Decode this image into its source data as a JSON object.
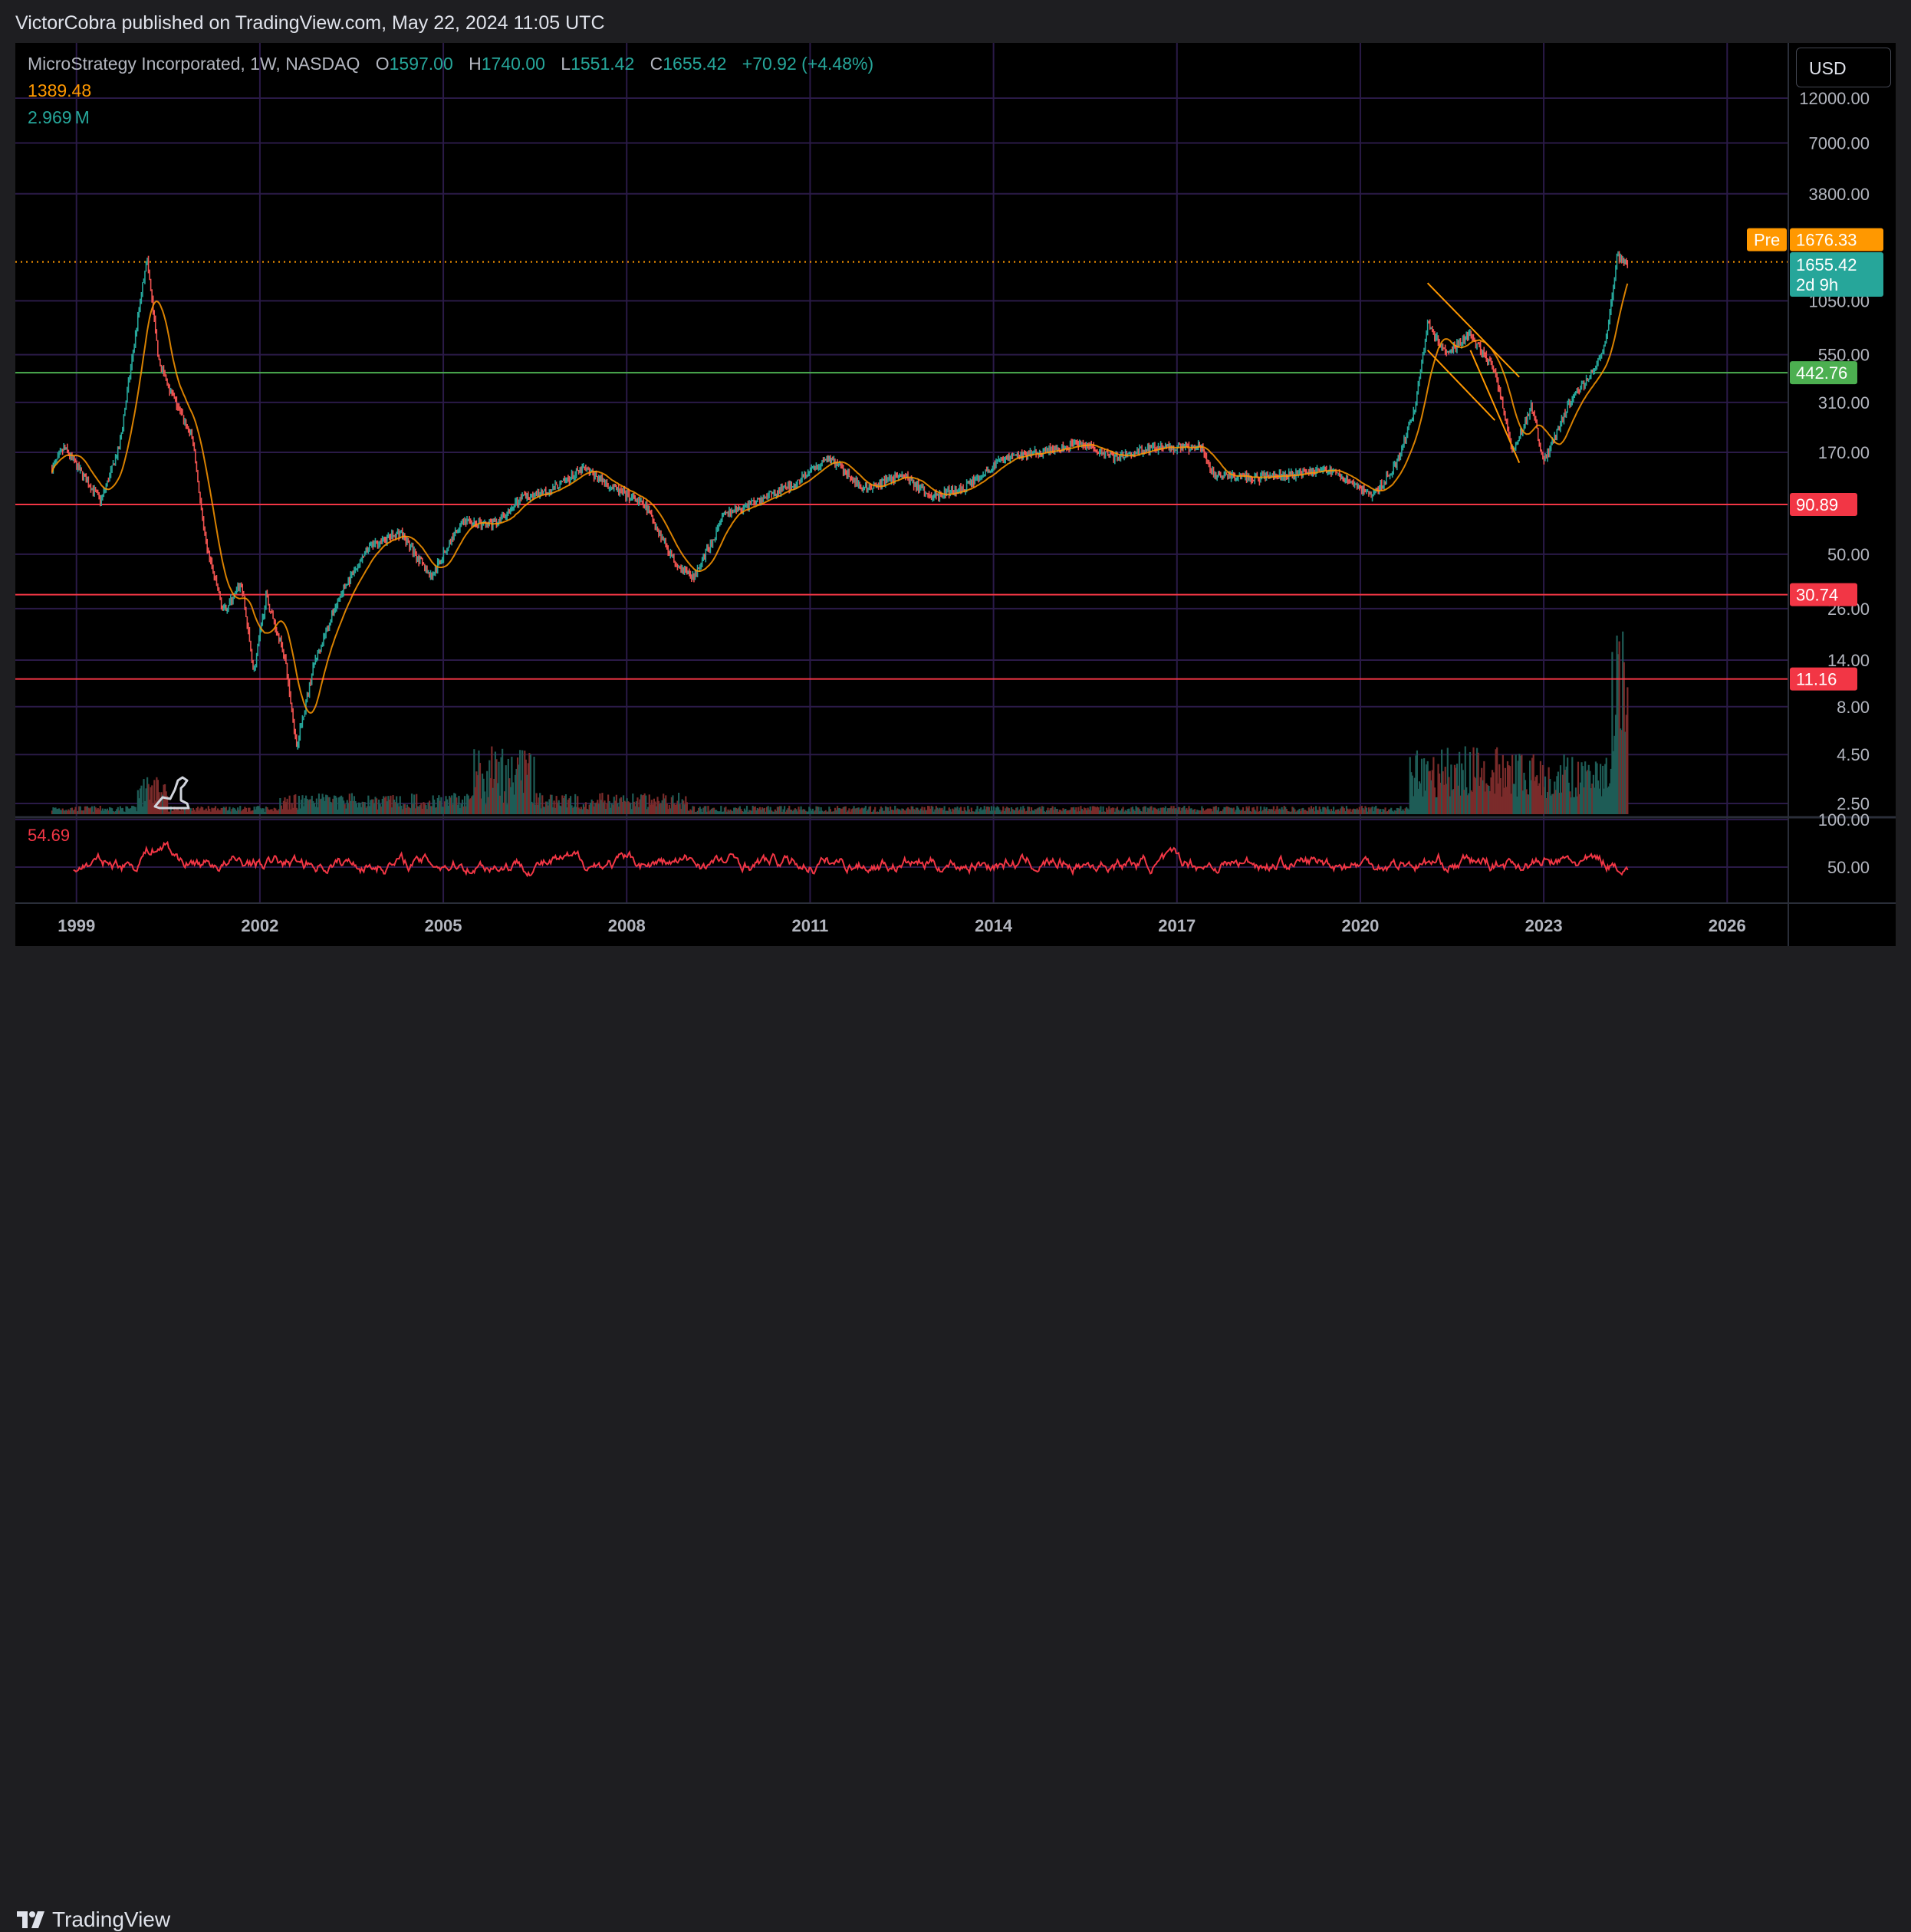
{
  "header": {
    "publisher_text": "VictorCobra published on TradingView.com, May 22, 2024 11:05 UTC"
  },
  "legend": {
    "symbol": "MicroStrategy Incorporated, 1W, NASDAQ",
    "o_label": "O",
    "o_value": "1597.00",
    "h_label": "H",
    "h_value": "1740.00",
    "l_label": "L",
    "l_value": "1551.42",
    "c_label": "C",
    "c_value": "1655.42",
    "change": "+70.92 (+4.48%)",
    "ma_value": "1389.48",
    "volume_value": "2.969",
    "volume_unit": "M"
  },
  "currency_button": "USD",
  "price_axis": {
    "ticks": [
      "12000.00",
      "7000.00",
      "3800.00",
      "1050.00",
      "550.00",
      "310.00",
      "170.00",
      "50.00",
      "26.00",
      "14.00",
      "8.00",
      "4.50",
      "2.50"
    ],
    "pre_label": "Pre",
    "pre_price": "1676.33",
    "last_price": "1655.42",
    "countdown": "2d 9h",
    "levels": [
      "442.76",
      "90.89",
      "30.74",
      "11.16"
    ]
  },
  "rsi": {
    "value": "54.69",
    "ticks": [
      "100.00",
      "50.00"
    ]
  },
  "time_axis": {
    "ticks": [
      "1999",
      "2002",
      "2005",
      "2008",
      "2011",
      "2014",
      "2017",
      "2020",
      "2023",
      "2026"
    ]
  },
  "colors": {
    "up": "#26a69a",
    "down": "#ef5350",
    "ma": "#ff9800",
    "level_green": "#4caf50",
    "level_red": "#f23645",
    "rsi": "#f23645",
    "grid": "#2a1a47",
    "pre": "#ff9800",
    "last": "#26a69a"
  },
  "chart_data": {
    "type": "candlestick",
    "symbol": "MicroStrategy Incorporated",
    "interval": "1W",
    "exchange": "NASDAQ",
    "y_scale": "log",
    "ohlc_last": {
      "open": 1597.0,
      "high": 1740.0,
      "low": 1551.42,
      "close": 1655.42
    },
    "price_series_approx": [
      {
        "t": 1998.6,
        "p": 140
      },
      {
        "t": 1998.8,
        "p": 180
      },
      {
        "t": 1999.1,
        "p": 130
      },
      {
        "t": 1999.4,
        "p": 95
      },
      {
        "t": 1999.7,
        "p": 180
      },
      {
        "t": 1999.9,
        "p": 500
      },
      {
        "t": 2000.15,
        "p": 1800
      },
      {
        "t": 2000.35,
        "p": 500
      },
      {
        "t": 2000.6,
        "p": 320
      },
      {
        "t": 2000.9,
        "p": 200
      },
      {
        "t": 2001.1,
        "p": 60
      },
      {
        "t": 2001.4,
        "p": 25
      },
      {
        "t": 2001.7,
        "p": 35
      },
      {
        "t": 2001.9,
        "p": 12
      },
      {
        "t": 2002.1,
        "p": 30
      },
      {
        "t": 2002.4,
        "p": 15
      },
      {
        "t": 2002.6,
        "p": 5
      },
      {
        "t": 2002.9,
        "p": 14
      },
      {
        "t": 2003.3,
        "p": 30
      },
      {
        "t": 2003.8,
        "p": 55
      },
      {
        "t": 2004.3,
        "p": 65
      },
      {
        "t": 2004.8,
        "p": 38
      },
      {
        "t": 2005.3,
        "p": 75
      },
      {
        "t": 2005.8,
        "p": 70
      },
      {
        "t": 2006.3,
        "p": 100
      },
      {
        "t": 2006.8,
        "p": 110
      },
      {
        "t": 2007.3,
        "p": 140
      },
      {
        "t": 2007.8,
        "p": 110
      },
      {
        "t": 2008.3,
        "p": 90
      },
      {
        "t": 2008.8,
        "p": 45
      },
      {
        "t": 2009.1,
        "p": 38
      },
      {
        "t": 2009.6,
        "p": 80
      },
      {
        "t": 2010.3,
        "p": 100
      },
      {
        "t": 2010.8,
        "p": 120
      },
      {
        "t": 2011.3,
        "p": 160
      },
      {
        "t": 2011.9,
        "p": 110
      },
      {
        "t": 2012.5,
        "p": 130
      },
      {
        "t": 2013.0,
        "p": 100
      },
      {
        "t": 2013.5,
        "p": 110
      },
      {
        "t": 2014.2,
        "p": 160
      },
      {
        "t": 2014.8,
        "p": 170
      },
      {
        "t": 2015.4,
        "p": 190
      },
      {
        "t": 2016.0,
        "p": 160
      },
      {
        "t": 2016.6,
        "p": 180
      },
      {
        "t": 2017.4,
        "p": 180
      },
      {
        "t": 2017.6,
        "p": 130
      },
      {
        "t": 2018.3,
        "p": 125
      },
      {
        "t": 2018.9,
        "p": 130
      },
      {
        "t": 2019.5,
        "p": 140
      },
      {
        "t": 2020.2,
        "p": 100
      },
      {
        "t": 2020.6,
        "p": 150
      },
      {
        "t": 2020.9,
        "p": 300
      },
      {
        "t": 2021.1,
        "p": 800
      },
      {
        "t": 2021.4,
        "p": 550
      },
      {
        "t": 2021.8,
        "p": 700
      },
      {
        "t": 2022.2,
        "p": 450
      },
      {
        "t": 2022.5,
        "p": 170
      },
      {
        "t": 2022.8,
        "p": 300
      },
      {
        "t": 2023.0,
        "p": 150
      },
      {
        "t": 2023.4,
        "p": 300
      },
      {
        "t": 2023.8,
        "p": 450
      },
      {
        "t": 2024.0,
        "p": 600
      },
      {
        "t": 2024.2,
        "p": 1800
      },
      {
        "t": 2024.38,
        "p": 1655
      }
    ],
    "horizontal_levels": [
      442.76,
      90.89,
      30.74,
      11.16
    ],
    "trend_lines": [
      {
        "from": {
          "t": 2021.1,
          "p": 1300
        },
        "to": {
          "t": 2022.6,
          "p": 420
        }
      },
      {
        "from": {
          "t": 2021.1,
          "p": 580
        },
        "to": {
          "t": 2022.2,
          "p": 250
        }
      },
      {
        "from": {
          "t": 2021.8,
          "p": 580
        },
        "to": {
          "t": 2022.6,
          "p": 150
        }
      }
    ],
    "rsi_last": 54.69,
    "rsi_range": [
      0,
      100
    ],
    "x_range": [
      1998.0,
      2027.0
    ]
  }
}
